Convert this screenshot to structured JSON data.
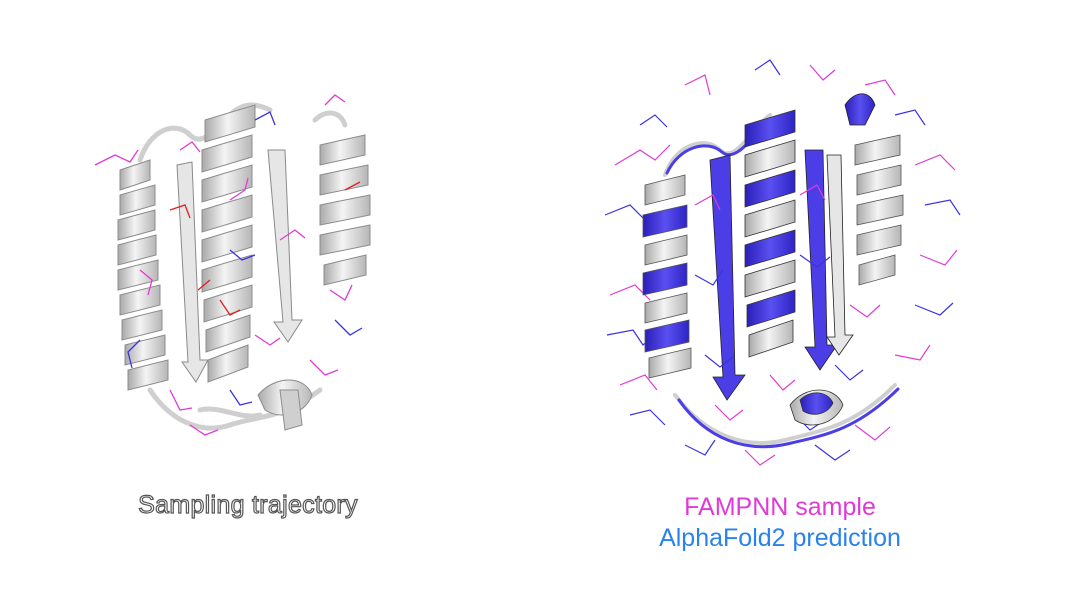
{
  "left_panel": {
    "caption": "Sampling trajectory"
  },
  "right_panel": {
    "captions": [
      {
        "text": "FAMPNN sample",
        "color": "#e03ad6"
      },
      {
        "text": "AlphaFold2 prediction",
        "color": "#2a83ea"
      }
    ]
  },
  "colors": {
    "cartoon": "#d7d7d7",
    "cartoon_shade": "#9a9a9a",
    "alphafold_cartoon": "#4b3ee6",
    "sidechain_magenta": "#e03ad6",
    "sidechain_blue": "#3a33e0",
    "atom_red": "#e02020"
  }
}
